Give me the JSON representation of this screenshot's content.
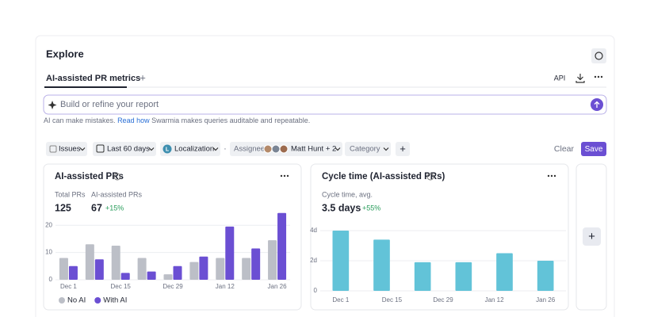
{
  "header": {
    "title": "Explore"
  },
  "tabs": {
    "active": "AI-assisted PR metrics",
    "add": "+",
    "api": "API"
  },
  "search": {
    "placeholder": "Build or refine your report"
  },
  "note": {
    "text": "AI can make mistakes.",
    "link": "Read how",
    "rest": "Swarmia makes queries auditable and repeatable."
  },
  "filters": {
    "issues": "Issues",
    "period": "Last 60 days",
    "badge": "L",
    "team": "Localization",
    "separator": "·",
    "assignee": "Assignee",
    "people": "Matt Hunt + 2",
    "category": "Category",
    "add": "+",
    "clear": "Clear",
    "save": "Save"
  },
  "widgets": [
    {
      "title": "AI-assisted PRs",
      "stats": [
        {
          "label": "Total PRs",
          "value": "125"
        },
        {
          "label": "AI-assisted PRs",
          "value": "67",
          "change": "+15%"
        }
      ],
      "chart_data": {
        "type": "bar",
        "categories": [
          "Dec 1",
          null,
          "Dec 15",
          null,
          "Dec 29",
          null,
          "Jan 12",
          null,
          "Jan 26"
        ],
        "series": [
          {
            "name": "No AI",
            "color": "#bcbfc7",
            "values": [
              8,
              13,
              12.5,
              8,
              2,
              6.5,
              8,
              8,
              14.5
            ]
          },
          {
            "name": "With AI",
            "color": "#6b4fd3",
            "values": [
              5,
              7.5,
              2.5,
              3,
              5,
              8.5,
              19.5,
              11.5,
              24.5
            ]
          }
        ],
        "ylim": [
          0,
          25
        ],
        "yticks": [
          0,
          10,
          20
        ],
        "grid": true
      }
    },
    {
      "title": "Cycle time (AI-assisted PRs)",
      "stats": [
        {
          "label": "Cycle time, avg.",
          "value": "3.5 days",
          "change": "+55%"
        }
      ],
      "chart_data": {
        "type": "bar",
        "categories": [
          null,
          null,
          null,
          null,
          null,
          null
        ],
        "xtick_labels": [
          "Dec 1",
          "Dec 15",
          "Dec 29",
          "Jan 12",
          "Jan 26"
        ],
        "values": [
          4,
          3.4,
          1.9,
          1.9,
          2.5,
          2
        ],
        "color": "#62c3d8",
        "ylim": [
          0,
          4
        ],
        "yticks": [
          0,
          {
            "value": 2,
            "label": "2d"
          },
          {
            "value": 4,
            "label": "4d"
          }
        ],
        "grid": true
      }
    }
  ],
  "add_widget": "+"
}
